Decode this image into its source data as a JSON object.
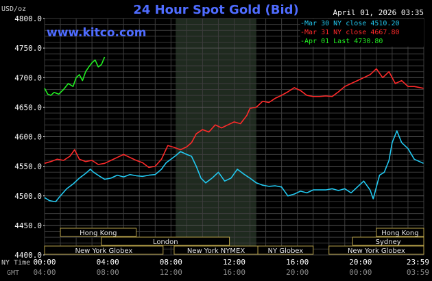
{
  "header": {
    "title": "24 Hour Spot Gold (Bid)",
    "datetime": "April 01, 2026 03:35",
    "unit": "USD/oz",
    "website": "www.kitco.com"
  },
  "legend": [
    {
      "text": "-Mar 30 NY close 4510.20",
      "color": "#22c8f0"
    },
    {
      "text": "-Mar 31 NY close 4667.80",
      "color": "#ff2a2a"
    },
    {
      "text": "-Apr 01 Last 4730.80",
      "color": "#22ee22"
    }
  ],
  "time_labels": {
    "ny": "NY Time",
    "gmt": "GMT",
    "ny_ticks": [
      "00:00",
      "04:00",
      "08:00",
      "12:00",
      "16:00",
      "20:00",
      "23:59"
    ],
    "gmt_ticks": [
      "04:00",
      "08:00",
      "12:00",
      "16:00",
      "20:00",
      "00:00",
      "03:59"
    ]
  },
  "sessions": [
    {
      "label": "Hong Kong",
      "start": 1.0,
      "end": 5.8,
      "row": 0
    },
    {
      "label": "London",
      "start": 3.6,
      "end": 11.7,
      "row": 1
    },
    {
      "label": "New York Globex",
      "start": 0.0,
      "end": 7.5,
      "row": 2
    },
    {
      "label": "New York NYMEX",
      "start": 8.2,
      "end": 13.5,
      "row": 2
    },
    {
      "label": "NY Globex",
      "start": 13.5,
      "end": 17.0,
      "row": 2
    },
    {
      "label": "Hong Kong",
      "start": 21.0,
      "end": 24.0,
      "row": 0
    },
    {
      "label": "Sydney",
      "start": 19.5,
      "end": 24.0,
      "row": 1
    },
    {
      "label": "New York Globex",
      "start": 18.0,
      "end": 24.0,
      "row": 2
    }
  ],
  "colors": {
    "background": "#000000",
    "grid": "#3c3c3c",
    "shade": "#1f2a1f",
    "axis_text": "#ffffff",
    "session_border": "#b8a24a"
  },
  "chart_data": {
    "type": "line",
    "xlabel": "",
    "ylabel": "USD/oz",
    "xlim": [
      0,
      24
    ],
    "ylim": [
      4400,
      4800
    ],
    "yticks": [
      4400.0,
      4450.0,
      4500.0,
      4550.0,
      4600.0,
      4650.0,
      4700.0,
      4750.0,
      4800.0
    ],
    "ytick_labels": [
      "4400.0",
      "4450.0",
      "4500.0",
      "4550.0",
      "4600.0",
      "4650.0",
      "4700.0",
      "4750.0",
      "4800.0"
    ],
    "x_ticks_hours": [
      0,
      4,
      8,
      12,
      16,
      20,
      23.98
    ],
    "shaded_region_hours": [
      8.3,
      13.4
    ],
    "grid": true,
    "series": [
      {
        "name": "Mar 30 NY close 4510.20",
        "color": "#22c8f0",
        "x": [
          0,
          0.3,
          0.7,
          1.0,
          1.4,
          1.8,
          2.2,
          2.6,
          2.9,
          3.1,
          3.5,
          3.8,
          4.2,
          4.6,
          5.0,
          5.4,
          5.8,
          6.2,
          6.6,
          7.0,
          7.4,
          7.7,
          8.0,
          8.3,
          8.6,
          9.0,
          9.3,
          9.6,
          9.9,
          10.2,
          10.6,
          11.0,
          11.4,
          11.8,
          12.2,
          12.6,
          13.0,
          13.4,
          13.8,
          14.2,
          14.6,
          15.0,
          15.4,
          15.8,
          16.2,
          16.6,
          17.0,
          17.4,
          17.8,
          18.2,
          18.6,
          19.0,
          19.4,
          19.8,
          20.2,
          20.6,
          20.8,
          21.0,
          21.2,
          21.5,
          21.8,
          22.0,
          22.3,
          22.6,
          23.0,
          23.4,
          23.98
        ],
        "y": [
          4497,
          4492,
          4490,
          4500,
          4512,
          4520,
          4530,
          4538,
          4545,
          4540,
          4533,
          4528,
          4530,
          4535,
          4532,
          4536,
          4534,
          4533,
          4535,
          4536,
          4545,
          4556,
          4562,
          4568,
          4575,
          4570,
          4567,
          4550,
          4530,
          4522,
          4530,
          4540,
          4525,
          4530,
          4545,
          4537,
          4530,
          4522,
          4518,
          4516,
          4517,
          4515,
          4500,
          4503,
          4508,
          4505,
          4510,
          4510,
          4510,
          4512,
          4509,
          4512,
          4505,
          4515,
          4525,
          4510,
          4495,
          4515,
          4535,
          4540,
          4560,
          4590,
          4610,
          4590,
          4580,
          4562,
          4555
        ]
      },
      {
        "name": "Mar 31 NY close 4667.80",
        "color": "#ff2a2a",
        "x": [
          0,
          0.4,
          0.8,
          1.2,
          1.6,
          1.9,
          2.2,
          2.6,
          3.0,
          3.4,
          3.8,
          4.2,
          4.6,
          5.0,
          5.4,
          5.8,
          6.2,
          6.6,
          7.0,
          7.4,
          7.8,
          8.2,
          8.6,
          9.0,
          9.3,
          9.6,
          10.0,
          10.4,
          10.8,
          11.2,
          11.6,
          12.0,
          12.4,
          12.8,
          13.0,
          13.4,
          13.8,
          14.2,
          14.6,
          15.0,
          15.4,
          15.8,
          16.2,
          16.6,
          17.0,
          17.4,
          17.8,
          18.2,
          18.6,
          19.0,
          19.4,
          19.8,
          20.2,
          20.6,
          21.0,
          21.4,
          21.8,
          22.2,
          22.6,
          23.0,
          23.4,
          23.98
        ],
        "y": [
          4555,
          4558,
          4562,
          4560,
          4567,
          4578,
          4562,
          4558,
          4560,
          4553,
          4555,
          4560,
          4565,
          4570,
          4565,
          4560,
          4556,
          4548,
          4550,
          4562,
          4585,
          4582,
          4578,
          4583,
          4590,
          4605,
          4612,
          4608,
          4620,
          4615,
          4620,
          4625,
          4622,
          4636,
          4648,
          4650,
          4660,
          4658,
          4665,
          4670,
          4676,
          4683,
          4678,
          4670,
          4668,
          4668,
          4669,
          4668,
          4676,
          4685,
          4690,
          4695,
          4700,
          4705,
          4715,
          4700,
          4710,
          4690,
          4695,
          4685,
          4685,
          4682
        ]
      },
      {
        "name": "Apr 01 Last 4730.80",
        "color": "#22ee22",
        "x": [
          0,
          0.2,
          0.4,
          0.6,
          0.9,
          1.2,
          1.5,
          1.8,
          2.0,
          2.2,
          2.4,
          2.6,
          2.8,
          3.0,
          3.2,
          3.4,
          3.6,
          3.8
        ],
        "y": [
          4682,
          4672,
          4670,
          4675,
          4672,
          4680,
          4690,
          4685,
          4700,
          4705,
          4695,
          4710,
          4718,
          4725,
          4730,
          4718,
          4722,
          4735
        ]
      }
    ]
  }
}
